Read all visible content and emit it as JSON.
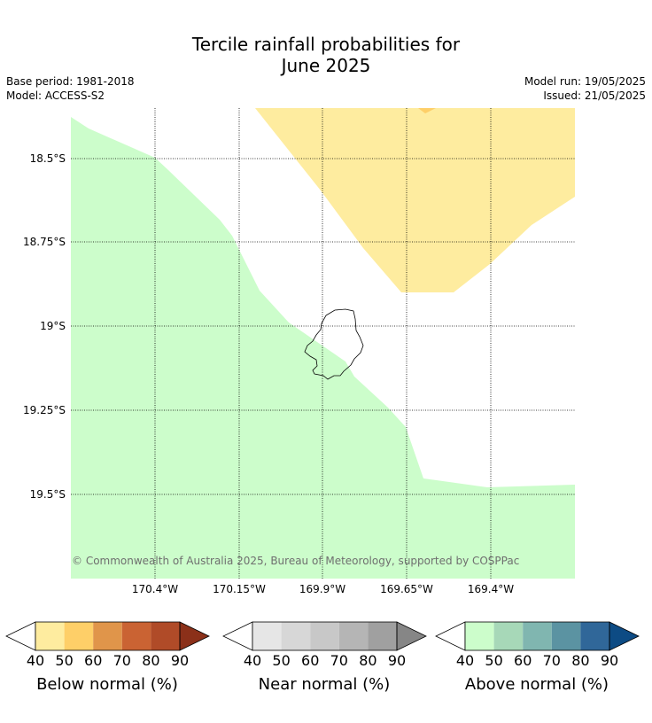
{
  "title": {
    "line1": "Tercile rainfall probabilities for",
    "line2": "June 2025"
  },
  "meta": {
    "base_period": "Base period: 1981-2018",
    "model": "Model: ACCESS-S2",
    "model_run": "Model run: 19/05/2025",
    "issued": "Issued: 21/05/2025"
  },
  "map": {
    "lat_labels": [
      "18.5°S",
      "18.75°S",
      "19°S",
      "19.25°S",
      "19.5°S"
    ],
    "lon_labels": [
      "170.4°W",
      "170.15°W",
      "169.9°W",
      "169.65°W",
      "169.4°W"
    ],
    "colors": {
      "above_40_50": "#ccfdcb",
      "below_40_50": "#feec9f",
      "below_50_60": "#fecf68"
    },
    "copyright": "© Commonwealth of Australia 2025, Bureau of Meteorology, supported by COSPPac"
  },
  "colorbars": [
    {
      "title": "Below normal (%)",
      "ticks": [
        "40",
        "50",
        "60",
        "70",
        "80",
        "90"
      ],
      "colors": [
        "#feec9f",
        "#fecf68",
        "#e0954a",
        "#ca6333",
        "#b04b28",
        "#8b3019"
      ]
    },
    {
      "title": "Near normal (%)",
      "ticks": [
        "40",
        "50",
        "60",
        "70",
        "80",
        "90"
      ],
      "colors": [
        "#e6e6e6",
        "#d7d7d7",
        "#c8c8c8",
        "#b5b5b5",
        "#a0a0a0",
        "#868686"
      ]
    },
    {
      "title": "Above normal (%)",
      "ticks": [
        "40",
        "50",
        "60",
        "70",
        "80",
        "90"
      ],
      "colors": [
        "#ccfdcb",
        "#a7d8b8",
        "#80b6b0",
        "#5b93a2",
        "#306799",
        "#0d4b84"
      ]
    }
  ]
}
